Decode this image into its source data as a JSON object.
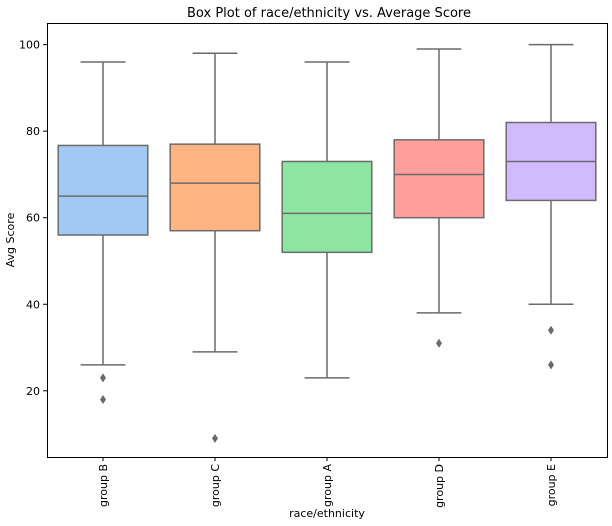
{
  "chart_data": {
    "type": "box",
    "title": "Box Plot of race/ethnicity vs. Average Score",
    "xlabel": "race/ethnicity",
    "ylabel": "Avg Score",
    "ylim": [
      4.7,
      105.0
    ],
    "yticks": [
      20,
      40,
      60,
      80,
      100
    ],
    "grid": false,
    "categories": [
      "group B",
      "group C",
      "group A",
      "group D",
      "group E"
    ],
    "boxes": [
      {
        "category": "group B",
        "whisker_low": 26,
        "q1": 56,
        "median": 65,
        "q3": 76.7,
        "whisker_high": 96,
        "outliers": [
          23,
          18
        ],
        "color": "#a1c9f4"
      },
      {
        "category": "group C",
        "whisker_low": 29,
        "q1": 57,
        "median": 68,
        "q3": 77,
        "whisker_high": 98,
        "outliers": [
          9
        ],
        "color": "#ffb482"
      },
      {
        "category": "group A",
        "whisker_low": 23,
        "q1": 52,
        "median": 61,
        "q3": 73,
        "whisker_high": 96,
        "outliers": [],
        "color": "#8de5a1"
      },
      {
        "category": "group D",
        "whisker_low": 38,
        "q1": 60,
        "median": 70,
        "q3": 78,
        "whisker_high": 99,
        "outliers": [
          31
        ],
        "color": "#ff9f9b"
      },
      {
        "category": "group E",
        "whisker_low": 40,
        "q1": 64,
        "median": 73,
        "q3": 82,
        "whisker_high": 100,
        "outliers": [
          34,
          26
        ],
        "color": "#d0bbff"
      }
    ],
    "line_color": "#6b6b6b"
  }
}
